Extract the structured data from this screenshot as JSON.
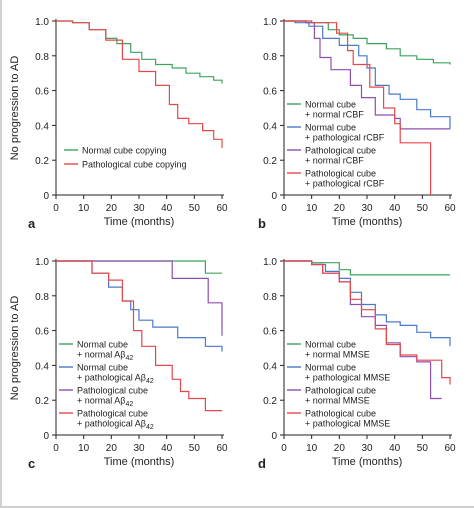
{
  "y_axis_label": "No progression to AD",
  "x_axis_label": "Time (months)",
  "colors": {
    "green": "#3fa35f",
    "red": "#e8474a",
    "blue": "#4a79c8",
    "purple": "#8d4fb0",
    "axis": "#222222"
  },
  "chart_data": [
    {
      "panel": "a",
      "type": "line",
      "step": true,
      "xlabel": "Time (months)",
      "ylabel": "No progression to AD",
      "xlim": [
        0,
        60
      ],
      "ylim": [
        0,
        1.0
      ],
      "x_ticks": [
        "0",
        "10",
        "20",
        "30",
        "40",
        "50",
        "60"
      ],
      "y_ticks": [
        "0",
        "0.2",
        "0.4",
        "0.6",
        "0.8",
        "1.0"
      ],
      "legend_position": "bottom-left",
      "series": [
        {
          "name": "Normal cube copying",
          "legend_lines": [
            "Normal cube copying"
          ],
          "color": "green",
          "points": [
            [
              0,
              1.0
            ],
            [
              6,
              0.99
            ],
            [
              12,
              0.95
            ],
            [
              18,
              0.9
            ],
            [
              22,
              0.87
            ],
            [
              27,
              0.82
            ],
            [
              31,
              0.78
            ],
            [
              36,
              0.75
            ],
            [
              42,
              0.73
            ],
            [
              47,
              0.7
            ],
            [
              52,
              0.68
            ],
            [
              57,
              0.66
            ],
            [
              60,
              0.64
            ]
          ]
        },
        {
          "name": "Pathological cube copying",
          "legend_lines": [
            "Pathological cube copying"
          ],
          "color": "red",
          "points": [
            [
              0,
              1.0
            ],
            [
              6,
              0.99
            ],
            [
              12,
              0.95
            ],
            [
              18,
              0.89
            ],
            [
              24,
              0.78
            ],
            [
              30,
              0.71
            ],
            [
              36,
              0.63
            ],
            [
              41,
              0.52
            ],
            [
              44,
              0.44
            ],
            [
              48,
              0.41
            ],
            [
              53,
              0.37
            ],
            [
              57,
              0.32
            ],
            [
              60,
              0.27
            ]
          ]
        }
      ]
    },
    {
      "panel": "b",
      "type": "line",
      "step": true,
      "xlabel": "Time (months)",
      "ylabel": "No progression to AD",
      "xlim": [
        0,
        60
      ],
      "ylim": [
        0,
        1.0
      ],
      "x_ticks": [
        "0",
        "10",
        "20",
        "30",
        "40",
        "50",
        "60"
      ],
      "y_ticks": [
        "0",
        "0.2",
        "0.4",
        "0.6",
        "0.8",
        "1.0"
      ],
      "legend_position": "left",
      "series": [
        {
          "name": "Normal cube + normal rCBF",
          "legend_lines": [
            "Normal cube",
            "+ normal rCBF"
          ],
          "color": "green",
          "points": [
            [
              0,
              1.0
            ],
            [
              8,
              0.99
            ],
            [
              16,
              0.95
            ],
            [
              20,
              0.92
            ],
            [
              25,
              0.9
            ],
            [
              30,
              0.87
            ],
            [
              37,
              0.84
            ],
            [
              42,
              0.8
            ],
            [
              48,
              0.78
            ],
            [
              54,
              0.76
            ],
            [
              60,
              0.75
            ]
          ]
        },
        {
          "name": "Normal cube + pathological rCBF",
          "legend_lines": [
            "Normal cube",
            "+ pathological rCBF"
          ],
          "color": "blue",
          "points": [
            [
              0,
              1.0
            ],
            [
              4,
              0.99
            ],
            [
              9,
              0.97
            ],
            [
              14,
              0.9
            ],
            [
              20,
              0.86
            ],
            [
              27,
              0.8
            ],
            [
              30,
              0.73
            ],
            [
              33,
              0.63
            ],
            [
              38,
              0.58
            ],
            [
              42,
              0.55
            ],
            [
              48,
              0.49
            ],
            [
              53,
              0.45
            ],
            [
              60,
              0.38
            ]
          ]
        },
        {
          "name": "Pathological cube + normal rCBF",
          "legend_lines": [
            "Pathological cube",
            "+ normal rCBF"
          ],
          "color": "purple",
          "points": [
            [
              0,
              1.0
            ],
            [
              8,
              0.99
            ],
            [
              11,
              0.9
            ],
            [
              13,
              0.79
            ],
            [
              17,
              0.72
            ],
            [
              24,
              0.63
            ],
            [
              28,
              0.56
            ],
            [
              33,
              0.46
            ],
            [
              40,
              0.44
            ],
            [
              42,
              0.38
            ],
            [
              60,
              0.38
            ]
          ]
        },
        {
          "name": "Pathological cube + pathological rCBF",
          "legend_lines": [
            "Pathological cube",
            "+ pathological rCBF"
          ],
          "color": "red",
          "points": [
            [
              0,
              1.0
            ],
            [
              10,
              0.99
            ],
            [
              19,
              0.93
            ],
            [
              23,
              0.83
            ],
            [
              25,
              0.75
            ],
            [
              31,
              0.62
            ],
            [
              36,
              0.5
            ],
            [
              40,
              0.41
            ],
            [
              42,
              0.3
            ],
            [
              53,
              0.3
            ],
            [
              53,
              0.0
            ]
          ]
        }
      ]
    },
    {
      "panel": "c",
      "type": "line",
      "step": true,
      "xlabel": "Time (months)",
      "ylabel": "No progression to AD",
      "xlim": [
        0,
        60
      ],
      "ylim": [
        0,
        1.0
      ],
      "x_ticks": [
        "0",
        "10",
        "20",
        "30",
        "40",
        "50",
        "60"
      ],
      "y_ticks": [
        "0",
        "0.2",
        "0.4",
        "0.6",
        "0.8",
        "1.0"
      ],
      "legend_position": "left",
      "series": [
        {
          "name": "Normal cube + normal Aβ42",
          "legend_lines": [
            "Normal cube",
            "+ normal Aβ"
          ],
          "legend_sub": [
            "",
            "42"
          ],
          "color": "green",
          "points": [
            [
              0,
              1.0
            ],
            [
              54,
              1.0
            ],
            [
              54,
              0.93
            ],
            [
              60,
              0.93
            ]
          ]
        },
        {
          "name": "Normal cube + pathological Aβ42",
          "legend_lines": [
            "Normal cube",
            "+ pathological Aβ"
          ],
          "legend_sub": [
            "",
            "42"
          ],
          "color": "blue",
          "points": [
            [
              0,
              1.0
            ],
            [
              13,
              0.93
            ],
            [
              19,
              0.85
            ],
            [
              24,
              0.77
            ],
            [
              27,
              0.72
            ],
            [
              30,
              0.66
            ],
            [
              35,
              0.62
            ],
            [
              44,
              0.56
            ],
            [
              52,
              0.56
            ],
            [
              54,
              0.51
            ],
            [
              60,
              0.48
            ]
          ]
        },
        {
          "name": "Pathological cube + normal Aβ42",
          "legend_lines": [
            "Pathological cube",
            "+ normal Aβ"
          ],
          "legend_sub": [
            "",
            "42"
          ],
          "color": "purple",
          "points": [
            [
              0,
              1.0
            ],
            [
              42,
              1.0
            ],
            [
              42,
              0.9
            ],
            [
              55,
              0.9
            ],
            [
              55,
              0.76
            ],
            [
              60,
              0.57
            ]
          ]
        },
        {
          "name": "Pathological cube + pathological Aβ42",
          "legend_lines": [
            "Pathological cube",
            "+ pathological Aβ"
          ],
          "legend_sub": [
            "",
            "42"
          ],
          "color": "red",
          "points": [
            [
              0,
              1.0
            ],
            [
              13,
              0.93
            ],
            [
              19,
              0.89
            ],
            [
              24,
              0.77
            ],
            [
              28,
              0.6
            ],
            [
              31,
              0.51
            ],
            [
              36,
              0.4
            ],
            [
              42,
              0.32
            ],
            [
              45,
              0.25
            ],
            [
              48,
              0.21
            ],
            [
              54,
              0.14
            ],
            [
              60,
              0.14
            ]
          ]
        }
      ]
    },
    {
      "panel": "d",
      "type": "line",
      "step": true,
      "xlabel": "Time (months)",
      "ylabel": "No progression to AD",
      "xlim": [
        0,
        60
      ],
      "ylim": [
        0,
        1.0
      ],
      "x_ticks": [
        "0",
        "10",
        "20",
        "30",
        "40",
        "50",
        "60"
      ],
      "y_ticks": [
        "0",
        "0.2",
        "0.4",
        "0.6",
        "0.8",
        "1.0"
      ],
      "legend_position": "left",
      "series": [
        {
          "name": "Normal cube + normal MMSE",
          "legend_lines": [
            "Normal cube",
            "+ normal MMSE"
          ],
          "color": "green",
          "points": [
            [
              0,
              1.0
            ],
            [
              10,
              0.99
            ],
            [
              20,
              0.95
            ],
            [
              24,
              0.92
            ],
            [
              60,
              0.92
            ]
          ]
        },
        {
          "name": "Normal cube + pathological MMSE",
          "legend_lines": [
            "Normal cube",
            "+ pathological MMSE"
          ],
          "color": "blue",
          "points": [
            [
              0,
              1.0
            ],
            [
              10,
              0.98
            ],
            [
              15,
              0.94
            ],
            [
              20,
              0.9
            ],
            [
              24,
              0.82
            ],
            [
              28,
              0.75
            ],
            [
              33,
              0.69
            ],
            [
              37,
              0.65
            ],
            [
              42,
              0.63
            ],
            [
              48,
              0.59
            ],
            [
              53,
              0.56
            ],
            [
              60,
              0.51
            ]
          ]
        },
        {
          "name": "Pathological cube + normal MMSE",
          "legend_lines": [
            "Pathological cube",
            "+ normal MMSE"
          ],
          "color": "purple",
          "points": [
            [
              0,
              1.0
            ],
            [
              10,
              0.98
            ],
            [
              14,
              0.93
            ],
            [
              20,
              0.88
            ],
            [
              24,
              0.75
            ],
            [
              28,
              0.68
            ],
            [
              33,
              0.63
            ],
            [
              37,
              0.53
            ],
            [
              42,
              0.45
            ],
            [
              48,
              0.42
            ],
            [
              53,
              0.21
            ],
            [
              57,
              0.21
            ]
          ]
        },
        {
          "name": "Pathological cube + pathological MMSE",
          "legend_lines": [
            "Pathological cube",
            "+ pathological MMSE"
          ],
          "color": "red",
          "points": [
            [
              0,
              1.0
            ],
            [
              10,
              0.98
            ],
            [
              14,
              0.93
            ],
            [
              20,
              0.88
            ],
            [
              24,
              0.78
            ],
            [
              28,
              0.72
            ],
            [
              33,
              0.61
            ],
            [
              37,
              0.52
            ],
            [
              42,
              0.46
            ],
            [
              48,
              0.43
            ],
            [
              53,
              0.43
            ],
            [
              57,
              0.33
            ],
            [
              60,
              0.29
            ]
          ]
        }
      ]
    }
  ]
}
